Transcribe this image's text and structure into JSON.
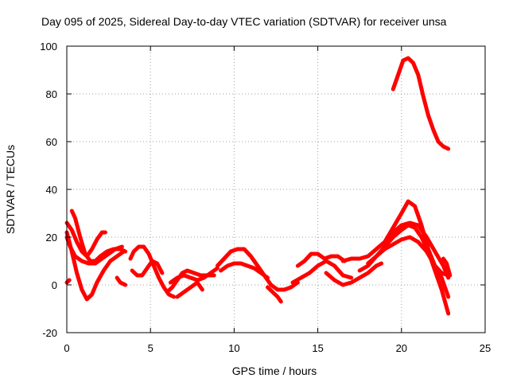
{
  "chart_data": {
    "type": "line",
    "title": "Day 095 of 2025, Sidereal Day-to-day VTEC variation (SDTVAR) for receiver unsa",
    "xlabel": "GPS time / hours",
    "ylabel": "SDTVAR / TECUs",
    "xlim": [
      0,
      25
    ],
    "ylim": [
      -20,
      100
    ],
    "xticks": [
      0,
      5,
      10,
      15,
      20,
      25
    ],
    "yticks": [
      -20,
      0,
      20,
      40,
      60,
      80,
      100
    ],
    "grid": true,
    "color": "#ff0000",
    "series": [
      {
        "name": "s1",
        "x": [
          0.0,
          0.3,
          0.6,
          0.9,
          1.2,
          1.5,
          1.8,
          2.1,
          2.3
        ],
        "y": [
          26,
          23,
          18,
          14,
          12,
          15,
          19,
          22,
          22
        ]
      },
      {
        "name": "s2",
        "x": [
          0.0,
          0.3,
          0.6,
          0.9,
          1.2,
          1.5,
          1.8,
          2.2,
          2.6,
          3.0,
          3.4
        ],
        "y": [
          22,
          14,
          5,
          -2,
          -6,
          -4,
          1,
          6,
          10,
          12,
          14
        ]
      },
      {
        "name": "s3",
        "x": [
          0.3,
          0.5,
          0.8,
          1.1,
          1.4,
          1.7,
          2.0,
          2.4,
          2.8,
          3.2,
          3.5
        ],
        "y": [
          31,
          28,
          20,
          13,
          10,
          10,
          12,
          14,
          15,
          15,
          14
        ]
      },
      {
        "name": "s4",
        "x": [
          0.0,
          0.2,
          0.5,
          0.9,
          1.3,
          1.7,
          2.1,
          2.5,
          2.9,
          3.3
        ],
        "y": [
          20,
          16,
          12,
          10,
          9,
          9,
          11,
          13,
          15,
          16
        ]
      },
      {
        "name": "s5",
        "x": [
          0.0,
          0.15
        ],
        "y": [
          1,
          2
        ]
      },
      {
        "name": "s6",
        "x": [
          3.0,
          3.2,
          3.5
        ],
        "y": [
          3,
          1,
          0
        ]
      },
      {
        "name": "s7",
        "x": [
          3.8,
          4.0,
          4.3,
          4.6,
          4.9,
          5.2,
          5.5,
          5.8,
          6.1,
          6.4
        ],
        "y": [
          11,
          14,
          16,
          16,
          13,
          8,
          3,
          -1,
          -4,
          -5
        ]
      },
      {
        "name": "s8",
        "x": [
          3.9,
          4.2,
          4.5,
          4.8,
          5.1,
          5.4,
          5.7
        ],
        "y": [
          6,
          4,
          4,
          7,
          10,
          9,
          5
        ]
      },
      {
        "name": "s9",
        "x": [
          6.0,
          6.3,
          6.6,
          6.9,
          7.2,
          7.6,
          8.0,
          8.4,
          8.8
        ],
        "y": [
          -3,
          -1,
          2,
          5,
          6,
          5,
          4,
          4,
          4
        ]
      },
      {
        "name": "s10",
        "x": [
          6.2,
          6.6,
          7.0,
          7.4,
          7.8,
          8.2,
          8.6,
          9.0
        ],
        "y": [
          1,
          3,
          4,
          3,
          2,
          3,
          5,
          7
        ]
      },
      {
        "name": "s11",
        "x": [
          6.6,
          7.0,
          7.4,
          7.8,
          8.1
        ],
        "y": [
          -5,
          -3,
          -1,
          1,
          -2
        ]
      },
      {
        "name": "s12",
        "x": [
          9.0,
          9.4,
          9.8,
          10.2,
          10.6,
          11.0,
          11.4,
          11.8,
          12.2,
          12.6,
          13.0,
          13.4,
          13.8
        ],
        "y": [
          8,
          11,
          14,
          15,
          15,
          12,
          8,
          4,
          0,
          -2,
          -2,
          -1,
          1
        ]
      },
      {
        "name": "s13",
        "x": [
          9.2,
          9.6,
          10.0,
          10.4,
          10.8,
          11.2,
          11.6,
          12.0
        ],
        "y": [
          6,
          8,
          9,
          9,
          8,
          7,
          5,
          3
        ]
      },
      {
        "name": "s14",
        "x": [
          12.0,
          12.3,
          12.6,
          12.8
        ],
        "y": [
          -1,
          -3,
          -5,
          -7
        ]
      },
      {
        "name": "s15",
        "x": [
          13.5,
          14.0,
          14.5,
          15.0,
          15.5,
          16.0,
          16.5,
          17.0
        ],
        "y": [
          1,
          3,
          5,
          8,
          10,
          8,
          4,
          3
        ]
      },
      {
        "name": "s16",
        "x": [
          13.8,
          14.2,
          14.6,
          15.0,
          15.4,
          15.8,
          16.2,
          16.6
        ],
        "y": [
          8,
          10,
          13,
          13,
          11,
          12,
          12,
          10
        ]
      },
      {
        "name": "s17",
        "x": [
          15.5,
          16.0,
          16.5,
          17.0,
          17.5,
          18.0,
          18.5,
          18.8
        ],
        "y": [
          5,
          2,
          0,
          1,
          3,
          5,
          8,
          9
        ]
      },
      {
        "name": "s18",
        "x": [
          16.5,
          17.0,
          17.5,
          18.0,
          18.5,
          19.0,
          19.5,
          20.0,
          20.4,
          20.8,
          21.2,
          21.6,
          22.0,
          22.4,
          22.8
        ],
        "y": [
          10,
          11,
          11,
          12,
          15,
          18,
          24,
          30,
          35,
          33,
          25,
          15,
          8,
          5,
          4
        ]
      },
      {
        "name": "s19",
        "x": [
          17.5,
          18.0,
          18.5,
          19.0,
          19.5,
          20.0,
          20.4,
          20.8,
          21.2,
          21.6,
          22.0,
          22.4,
          22.8
        ],
        "y": [
          6,
          8,
          12,
          16,
          20,
          23,
          25,
          24,
          20,
          14,
          6,
          -2,
          -12
        ]
      },
      {
        "name": "s20",
        "x": [
          18.0,
          18.5,
          19.0,
          19.5,
          20.0,
          20.5,
          21.0,
          21.5,
          22.0,
          22.4,
          22.8
        ],
        "y": [
          9,
          12,
          15,
          17,
          19,
          20,
          18,
          14,
          8,
          3,
          -5
        ]
      },
      {
        "name": "s21",
        "x": [
          18.5,
          19.0,
          19.5,
          20.0,
          20.5,
          21.0,
          21.5,
          22.0,
          22.5,
          22.8
        ],
        "y": [
          15,
          18,
          22,
          25,
          26,
          25,
          20,
          14,
          8,
          3
        ]
      },
      {
        "name": "s22",
        "x": [
          22.5,
          22.7,
          22.9
        ],
        "y": [
          11,
          9,
          4
        ]
      },
      {
        "name": "s23",
        "x": [
          19.5,
          19.8,
          20.1,
          20.4,
          20.7,
          21.0,
          21.3,
          21.6,
          21.9,
          22.2,
          22.5,
          22.8
        ],
        "y": [
          82,
          88,
          94,
          95,
          93,
          88,
          79,
          71,
          65,
          60,
          58,
          57
        ]
      }
    ]
  }
}
